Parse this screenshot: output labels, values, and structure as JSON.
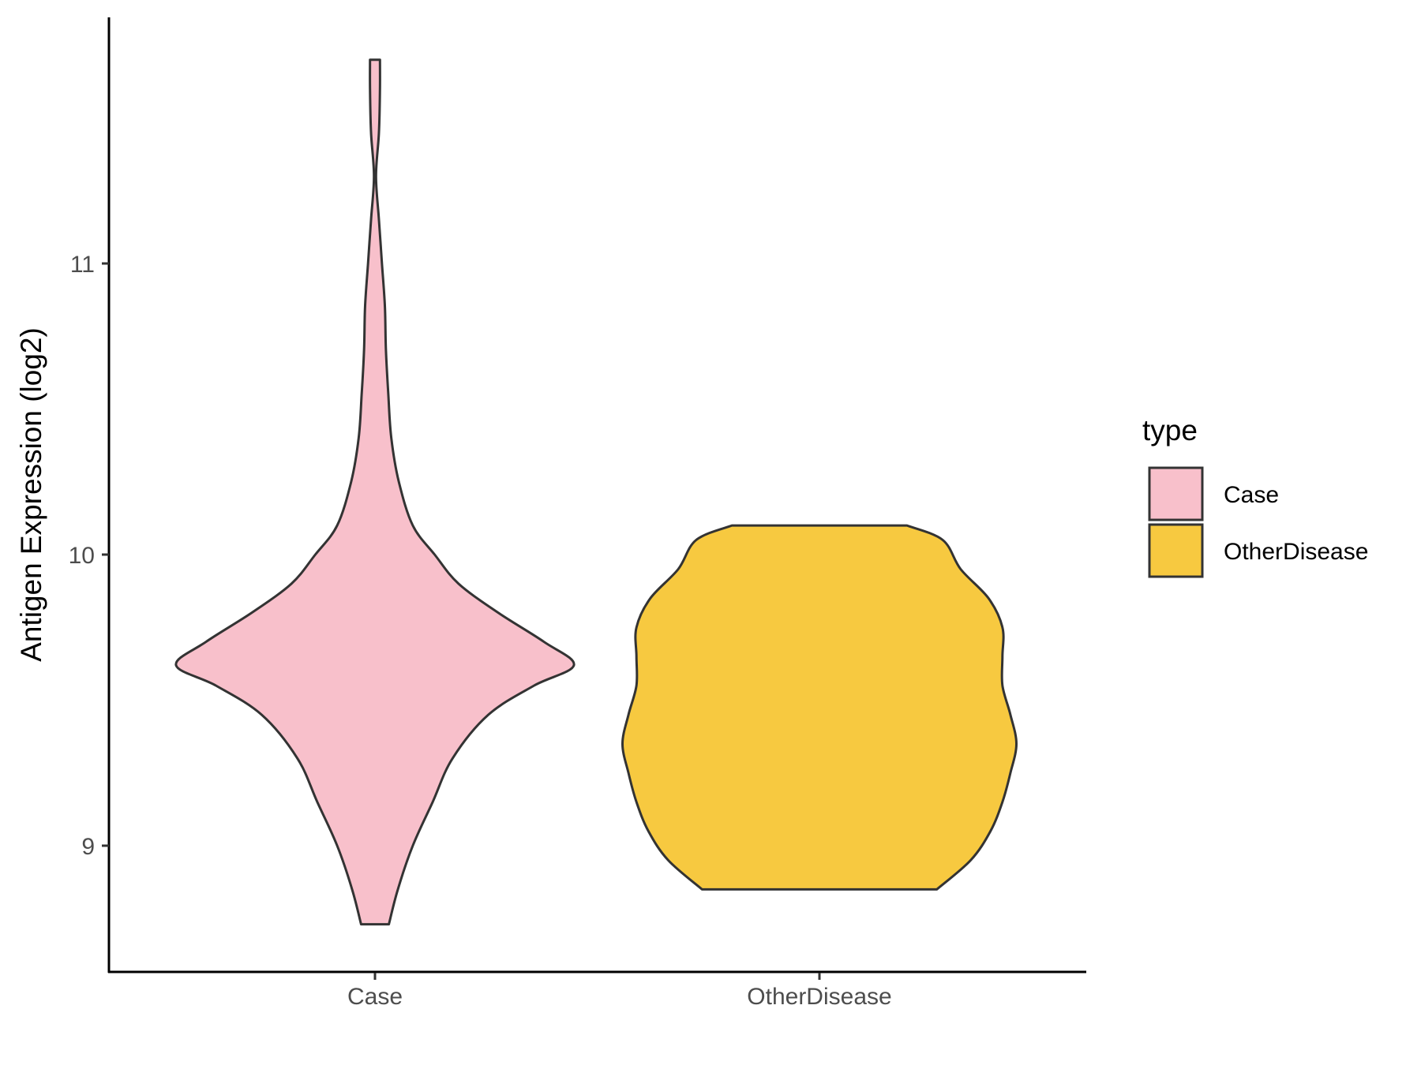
{
  "chart_data": {
    "type": "violin",
    "title": "",
    "xlabel": "",
    "ylabel": "Antigen Expression (log2)",
    "categories": [
      "Case",
      "OtherDisease"
    ],
    "ylim": [
      8.58,
      11.85
    ],
    "yticks": [
      9,
      10,
      11
    ],
    "grid": false,
    "legend": {
      "title": "type",
      "placement": "right",
      "entries": [
        "Case",
        "OtherDisease"
      ]
    },
    "series": [
      {
        "category": "Case",
        "color": "#F8C0CB",
        "min": 8.73,
        "max": 11.7,
        "profile": [
          [
            8.73,
            0.07
          ],
          [
            8.85,
            0.115
          ],
          [
            9.0,
            0.19
          ],
          [
            9.15,
            0.29
          ],
          [
            9.3,
            0.39
          ],
          [
            9.45,
            0.57
          ],
          [
            9.55,
            0.8
          ],
          [
            9.62,
            1.0
          ],
          [
            9.7,
            0.85
          ],
          [
            9.8,
            0.62
          ],
          [
            9.9,
            0.42
          ],
          [
            10.0,
            0.3
          ],
          [
            10.1,
            0.19
          ],
          [
            10.25,
            0.12
          ],
          [
            10.4,
            0.082
          ],
          [
            10.55,
            0.067
          ],
          [
            10.7,
            0.055
          ],
          [
            10.85,
            0.05
          ],
          [
            11.0,
            0.035
          ],
          [
            11.15,
            0.02
          ],
          [
            11.3,
            0.005
          ],
          [
            11.45,
            0.02
          ],
          [
            11.6,
            0.025
          ],
          [
            11.7,
            0.025
          ]
        ]
      },
      {
        "category": "OtherDisease",
        "color": "#F7C940",
        "min": 8.85,
        "max": 10.1,
        "profile": [
          [
            8.85,
            0.59
          ],
          [
            8.95,
            0.76
          ],
          [
            9.05,
            0.86
          ],
          [
            9.15,
            0.92
          ],
          [
            9.25,
            0.96
          ],
          [
            9.35,
            0.99
          ],
          [
            9.45,
            0.96
          ],
          [
            9.55,
            0.92
          ],
          [
            9.65,
            0.92
          ],
          [
            9.75,
            0.92
          ],
          [
            9.85,
            0.85
          ],
          [
            9.95,
            0.71
          ],
          [
            10.05,
            0.62
          ],
          [
            10.1,
            0.44
          ]
        ]
      }
    ]
  }
}
